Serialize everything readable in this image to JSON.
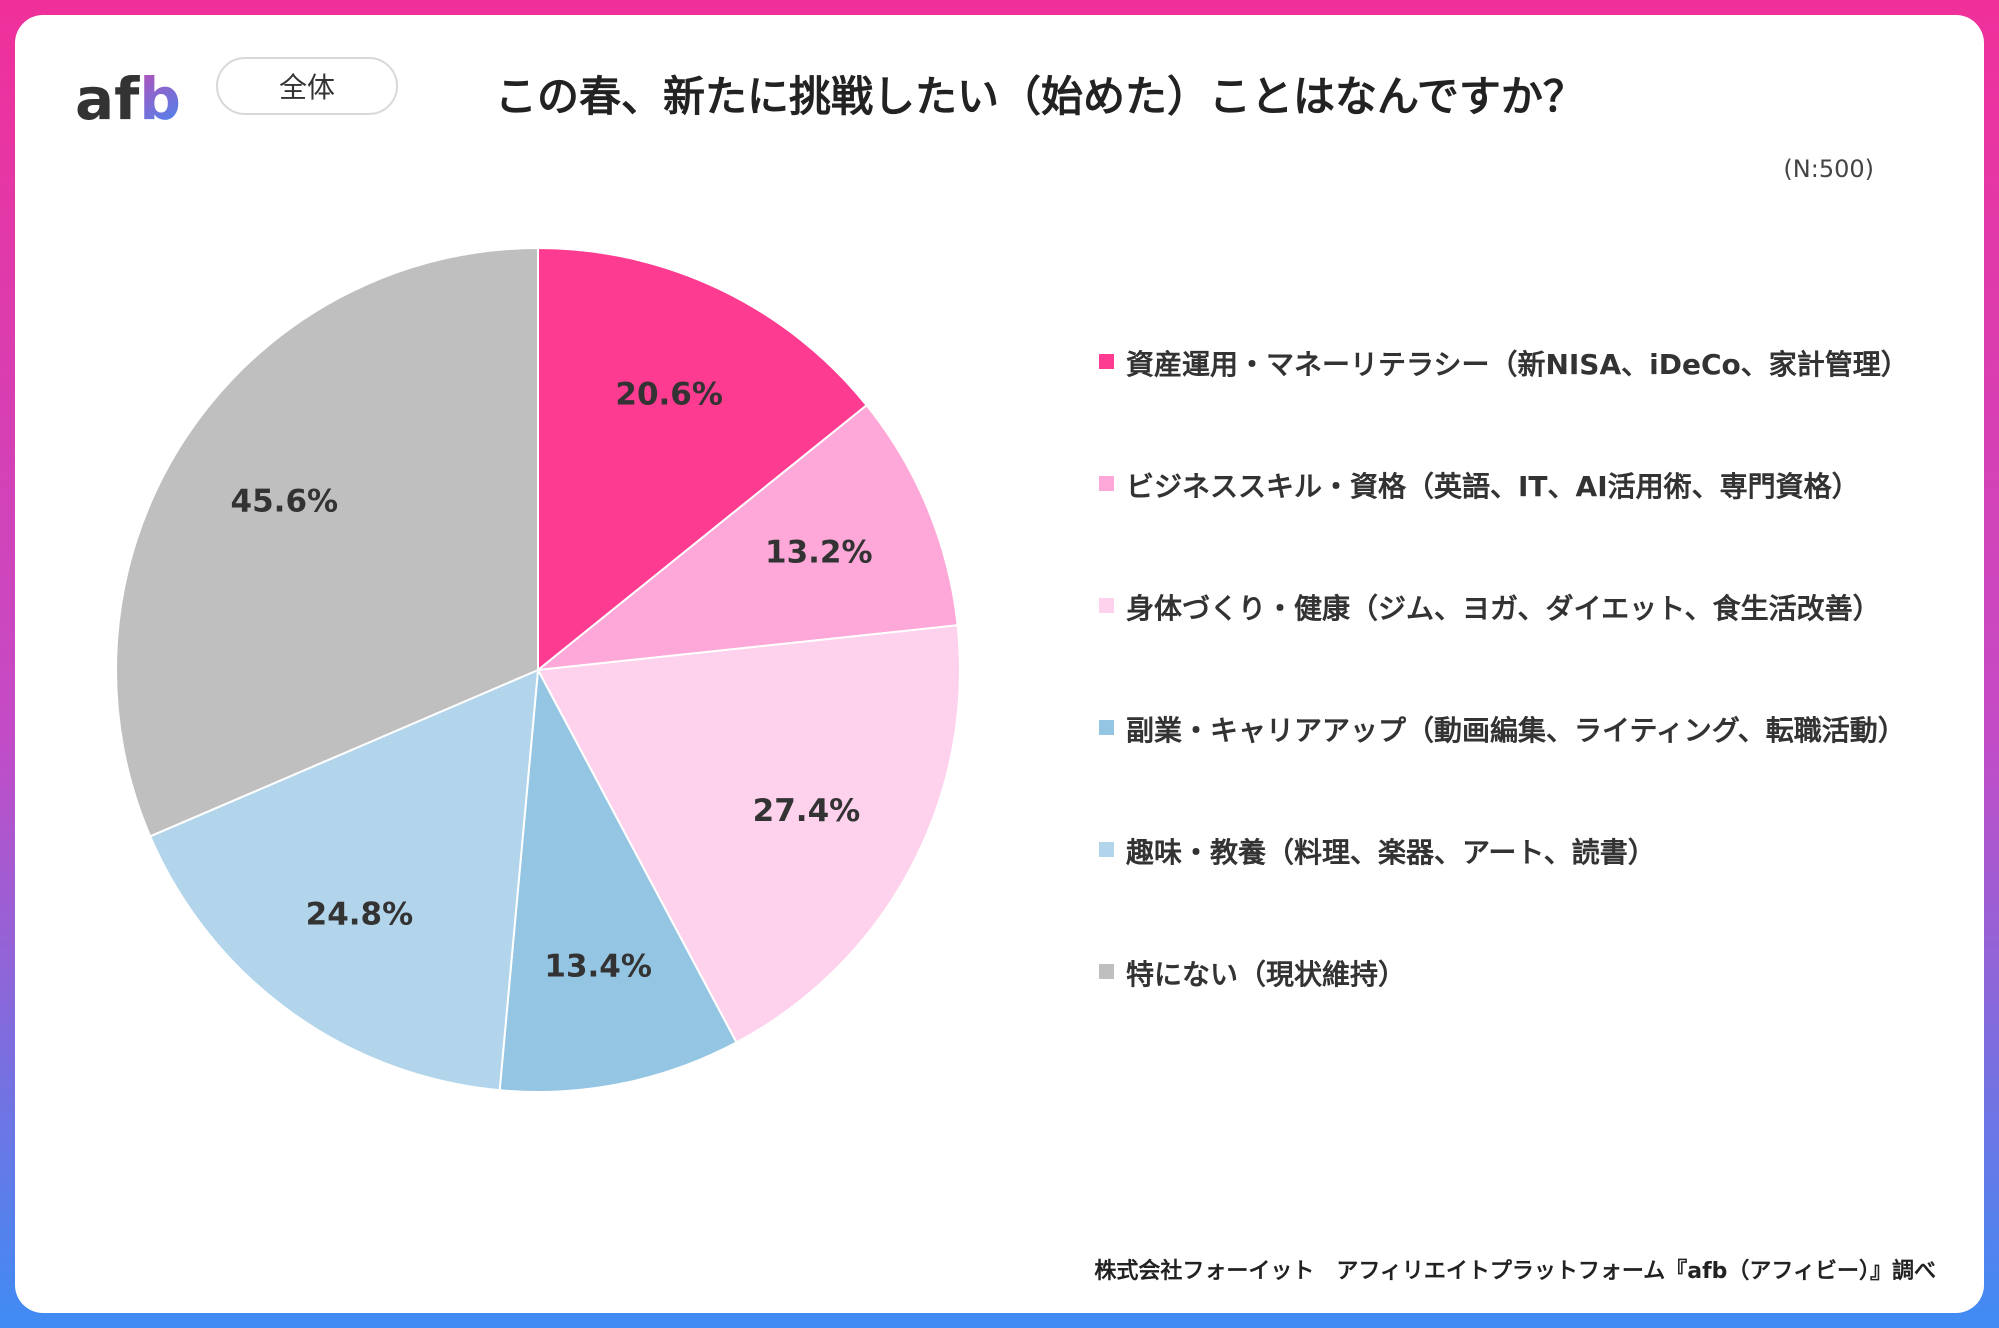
{
  "header": {
    "logo_text": "afb",
    "segment_label": "全体",
    "title": "この春、新たに挑戦したい（始めた）ことはなんですか？",
    "sample_size": "(N:500)"
  },
  "colors": {
    "frame_top": "#f0309a",
    "frame_bottom": "#3f8cf4"
  },
  "chart_data": {
    "type": "pie",
    "title": "この春、新たに挑戦したい（始めた）ことはなんですか？",
    "slices": [
      {
        "name": "資産運用・マネーリテラシー（新NISA、iDeCo、家計管理）",
        "value": 20.6,
        "label": "20.6%",
        "color": "#fd3c91"
      },
      {
        "name": "ビジネススキル・資格（英語、IT、AI活用術、専門資格）",
        "value": 13.2,
        "label": "13.2%",
        "color": "#fda8d8"
      },
      {
        "name": "身体づくり・健康（ジム、ヨガ、ダイエット、食生活改善）",
        "value": 27.4,
        "label": "27.4%",
        "color": "#fed2ec"
      },
      {
        "name": "副業・キャリアアップ（動画編集、ライティング、転職活動）",
        "value": 13.4,
        "label": "13.4%",
        "color": "#94c5e3"
      },
      {
        "name": "趣味・教養（料理、楽器、アート、読書）",
        "value": 24.8,
        "label": "24.8%",
        "color": "#b2d5eb"
      },
      {
        "name": "特にない（現状維持）",
        "value": 45.6,
        "label": "45.6%",
        "color": "#bfbfbf"
      }
    ],
    "legend_position": "right"
  },
  "footer": {
    "source": "株式会社フォーイット　アフィリエイトプラットフォーム『afb（アフィビー）』調べ"
  }
}
